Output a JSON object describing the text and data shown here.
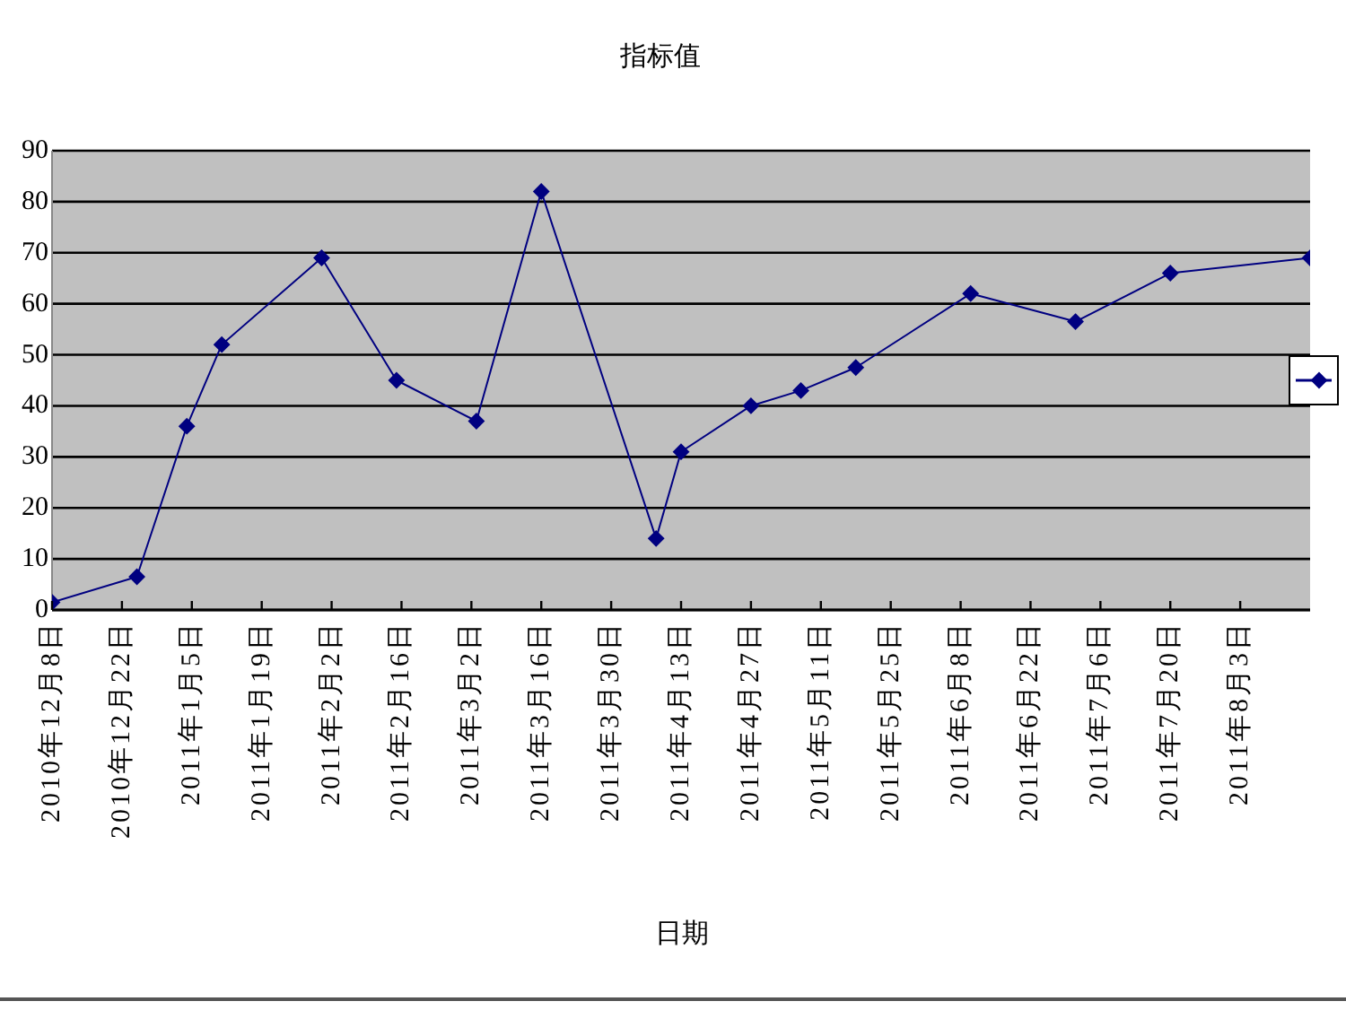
{
  "chart_data": {
    "type": "line",
    "title": "指标值",
    "xlabel": "日期",
    "x": [
      "2010-12-08",
      "2010-12-25",
      "2011-01-04",
      "2011-01-11",
      "2011-01-31",
      "2011-02-15",
      "2011-03-03",
      "2011-03-16",
      "2011-04-08",
      "2011-04-13",
      "2011-04-27",
      "2011-05-07",
      "2011-05-18",
      "2011-06-10",
      "2011-07-01",
      "2011-07-20",
      "2011-08-17"
    ],
    "series": [
      {
        "color": "#000080",
        "values": [
          1.5,
          6.5,
          36,
          52,
          69,
          45,
          37,
          82,
          14,
          31,
          40,
          43,
          47.5,
          62,
          56.5,
          66,
          69
        ]
      }
    ],
    "xlim": [
      "2010-12-08",
      "2011-08-17"
    ],
    "xticks": [
      {
        "value": "2010-12-08",
        "label": "2010年12月8日"
      },
      {
        "value": "2010-12-22",
        "label": "2010年12月22日"
      },
      {
        "value": "2011-01-05",
        "label": "2011年1月5日"
      },
      {
        "value": "2011-01-19",
        "label": "2011年1月19日"
      },
      {
        "value": "2011-02-02",
        "label": "2011年2月2日"
      },
      {
        "value": "2011-02-16",
        "label": "2011年2月16日"
      },
      {
        "value": "2011-03-02",
        "label": "2011年3月2日"
      },
      {
        "value": "2011-03-16",
        "label": "2011年3月16日"
      },
      {
        "value": "2011-03-30",
        "label": "2011年3月30日"
      },
      {
        "value": "2011-04-13",
        "label": "2011年4月13日"
      },
      {
        "value": "2011-04-27",
        "label": "2011年4月27日"
      },
      {
        "value": "2011-05-11",
        "label": "2011年5月11日"
      },
      {
        "value": "2011-05-25",
        "label": "2011年5月25日"
      },
      {
        "value": "2011-06-08",
        "label": "2011年6月8日"
      },
      {
        "value": "2011-06-22",
        "label": "2011年6月22日"
      },
      {
        "value": "2011-07-06",
        "label": "2011年7月6日"
      },
      {
        "value": "2011-07-20",
        "label": "2011年7月20日"
      },
      {
        "value": "2011-08-03",
        "label": "2011年8月3日"
      }
    ],
    "ylim": [
      0,
      90
    ],
    "yticks": [
      0,
      10,
      20,
      30,
      40,
      50,
      60,
      70,
      80,
      90
    ],
    "grid": "y",
    "marker": "diamond",
    "line_style": "solid"
  }
}
